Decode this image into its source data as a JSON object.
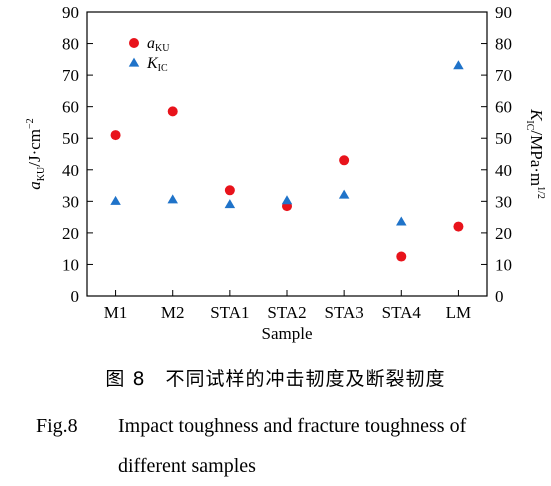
{
  "chart_data": {
    "type": "scatter",
    "categories": [
      "M1",
      "M2",
      "STA1",
      "STA2",
      "STA3",
      "STA4",
      "LM"
    ],
    "xlabel": "Sample",
    "ylabel_left": {
      "symbol": "a",
      "sub": "KU",
      "unit": "/J·cm",
      "sup": "−2"
    },
    "ylabel_right": {
      "symbol": "K",
      "sub": "IC",
      "unit": "/MPa·m",
      "sup": "1/2"
    },
    "ylim_left": [
      0,
      90
    ],
    "ylim_right": [
      0,
      90
    ],
    "yticks": [
      0,
      10,
      20,
      30,
      40,
      50,
      60,
      70,
      80,
      90
    ],
    "legend_position": "top-left",
    "series": [
      {
        "name": "a",
        "name_sub": "KU",
        "marker": "circle",
        "color": "#e8131b",
        "axis": "left",
        "values": [
          51,
          58.5,
          33.5,
          28.5,
          43,
          12.5,
          22
        ]
      },
      {
        "name": "K",
        "name_sub": "IC",
        "marker": "triangle",
        "color": "#1f73c9",
        "axis": "right",
        "values": [
          30,
          30.5,
          29,
          30.2,
          32,
          23.5,
          73
        ]
      }
    ]
  },
  "caption": {
    "cn": "图 8　不同试样的冲击韧度及断裂韧度",
    "en_num": "Fig.8",
    "en_line1": "Impact toughness and fracture toughness of",
    "en_line2": "different samples"
  }
}
